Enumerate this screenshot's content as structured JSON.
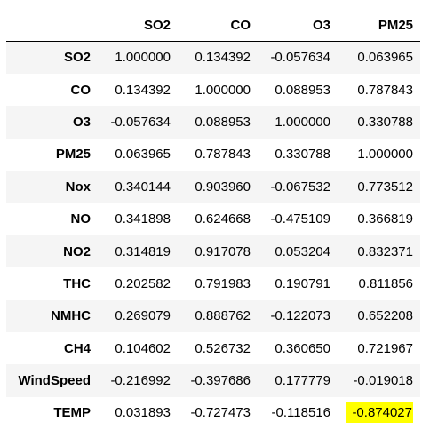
{
  "table": {
    "columns": [
      "SO2",
      "CO",
      "O3",
      "PM25"
    ],
    "rows": [
      {
        "label": "SO2",
        "values": [
          "1.000000",
          "0.134392",
          "-0.057634",
          "0.063965"
        ]
      },
      {
        "label": "CO",
        "values": [
          "0.134392",
          "1.000000",
          "0.088953",
          "0.787843"
        ]
      },
      {
        "label": "O3",
        "values": [
          "-0.057634",
          "0.088953",
          "1.000000",
          "0.330788"
        ]
      },
      {
        "label": "PM25",
        "values": [
          "0.063965",
          "0.787843",
          "0.330788",
          "1.000000"
        ]
      },
      {
        "label": "Nox",
        "values": [
          "0.340144",
          "0.903960",
          "-0.067532",
          "0.773512"
        ]
      },
      {
        "label": "NO",
        "values": [
          "0.341898",
          "0.624668",
          "-0.475109",
          "0.366819"
        ]
      },
      {
        "label": "NO2",
        "values": [
          "0.314819",
          "0.917078",
          "0.053204",
          "0.832371"
        ]
      },
      {
        "label": "THC",
        "values": [
          "0.202582",
          "0.791983",
          "0.190791",
          "0.811856"
        ]
      },
      {
        "label": "NMHC",
        "values": [
          "0.269079",
          "0.888762",
          "-0.122073",
          "0.652208"
        ]
      },
      {
        "label": "CH4",
        "values": [
          "0.104602",
          "0.526732",
          "0.360650",
          "0.721967"
        ]
      },
      {
        "label": "WindSpeed",
        "values": [
          "-0.216992",
          "-0.397686",
          "0.177779",
          "-0.019018"
        ]
      },
      {
        "label": "TEMP",
        "values": [
          "0.031893",
          "-0.727473",
          "-0.118516",
          "-0.874027"
        ]
      }
    ],
    "highlight_color": "#ffff00",
    "stripe_color": "#f5f5f5"
  }
}
